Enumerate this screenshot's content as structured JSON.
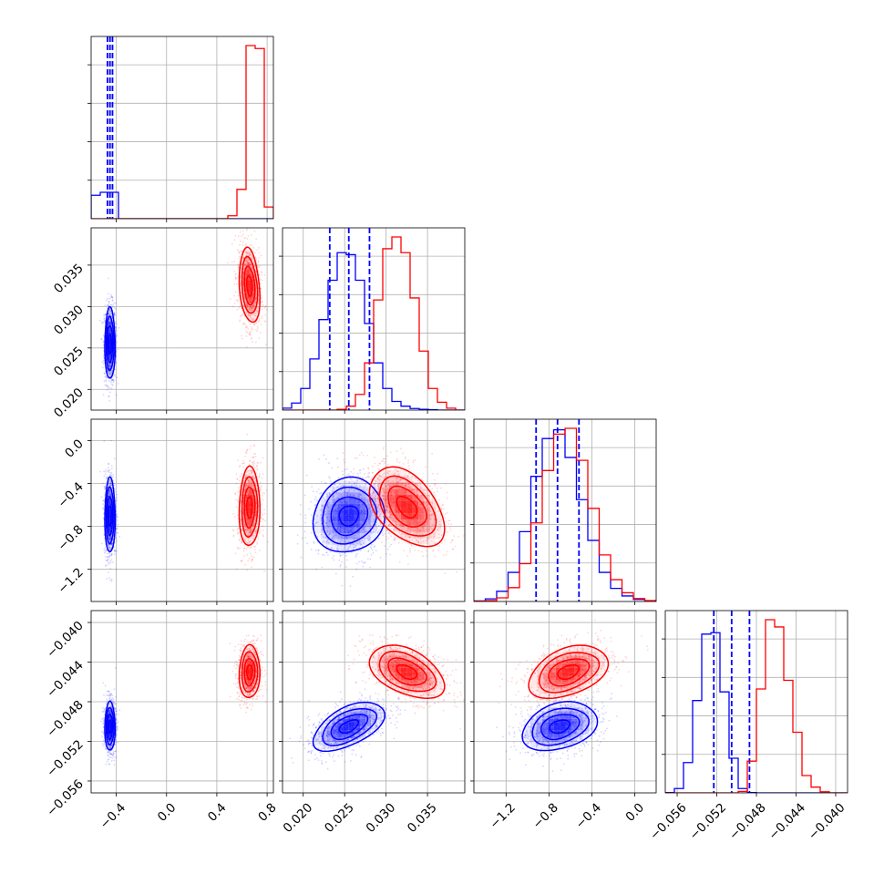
{
  "chart_data": {
    "type": "corner",
    "colors": {
      "series_a": "#0000ff",
      "series_b": "#ff0000"
    },
    "grid": true,
    "title": "",
    "parameters": [
      {
        "index": 0,
        "range": [
          -0.6,
          0.85
        ],
        "ticks": [
          "-0.4",
          "0.0",
          "0.4",
          "0.8"
        ],
        "tick_values": [
          -0.4,
          0.0,
          0.4,
          0.8
        ]
      },
      {
        "index": 1,
        "range": [
          0.0175,
          0.0395
        ],
        "ticks": [
          "0.020",
          "0.025",
          "0.030",
          "0.035"
        ],
        "tick_values": [
          0.02,
          0.025,
          0.03,
          0.035
        ]
      },
      {
        "index": 2,
        "range": [
          -1.5,
          0.2
        ],
        "ticks": [
          "-1.2",
          "-0.8",
          "-0.4",
          "0.0"
        ],
        "tick_values": [
          -1.2,
          -0.8,
          -0.4,
          0.0
        ]
      },
      {
        "index": 3,
        "range": [
          -0.0572,
          -0.0388
        ],
        "ticks": [
          "-0.056",
          "-0.052",
          "-0.048",
          "-0.044",
          "-0.040"
        ],
        "tick_values": [
          -0.056,
          -0.052,
          -0.048,
          -0.044,
          -0.04
        ]
      }
    ],
    "series": [
      {
        "color": "#0000ff",
        "mean": [
          -0.45,
          0.0255,
          -0.7,
          -0.0505
        ],
        "std": [
          0.02,
          0.0021,
          0.17,
          0.0012
        ],
        "corr": [
          [
            1,
            0,
            0,
            0
          ],
          [
            0,
            1,
            0.1,
            0.55
          ],
          [
            0,
            0.1,
            1,
            0.3
          ],
          [
            0,
            0.55,
            0.3,
            1
          ]
        ],
        "quantile_lines": [
          [
            -0.47,
            -0.45,
            -0.43
          ],
          [
            0.0232,
            0.0255,
            0.028
          ],
          [
            -0.92,
            -0.72,
            -0.52
          ],
          [
            -0.0523,
            -0.0505,
            -0.0487
          ]
        ],
        "histograms": [
          [
            8,
            9,
            9,
            0,
            0,
            0,
            0,
            0,
            0,
            0,
            0,
            0,
            0,
            0,
            0,
            0,
            0,
            0,
            0,
            0
          ],
          [
            5,
            18,
            55,
            130,
            230,
            330,
            400,
            395,
            330,
            220,
            120,
            55,
            22,
            10,
            4,
            2,
            1,
            0,
            0,
            0
          ],
          [
            4,
            18,
            70,
            200,
            480,
            860,
            1120,
            1180,
            990,
            700,
            420,
            200,
            90,
            38,
            14,
            5
          ],
          [
            2,
            30,
            210,
            640,
            1100,
            1110,
            700,
            240,
            30,
            2,
            0,
            0,
            0,
            0,
            0,
            0,
            0,
            0,
            0,
            0
          ]
        ]
      },
      {
        "color": "#ff0000",
        "mean": [
          0.66,
          0.0325,
          -0.62,
          -0.045
        ],
        "std": [
          0.04,
          0.0022,
          0.18,
          0.0013
        ],
        "corr": [
          [
            1,
            -0.25,
            0.05,
            0.05
          ],
          [
            -0.25,
            1,
            -0.45,
            -0.45
          ],
          [
            0.05,
            -0.45,
            1,
            0.4
          ],
          [
            0.05,
            -0.45,
            0.4,
            1
          ]
        ],
        "quantile_lines": [],
        "histograms": [
          [
            0,
            0,
            0,
            0,
            0,
            0,
            0,
            0,
            0,
            0,
            0,
            0,
            0,
            0,
            0,
            1,
            10,
            59,
            58,
            4
          ],
          [
            0,
            0,
            0,
            0,
            0,
            0,
            2,
            10,
            40,
            120,
            280,
            410,
            440,
            400,
            285,
            150,
            55,
            20,
            5,
            0
          ],
          [
            2,
            6,
            25,
            95,
            260,
            540,
            900,
            1150,
            1190,
            970,
            640,
            320,
            150,
            60,
            20,
            6
          ],
          [
            0,
            0,
            0,
            0,
            0,
            0,
            0,
            0,
            10,
            220,
            720,
            1200,
            1150,
            780,
            420,
            120,
            40,
            8,
            0,
            0
          ]
        ]
      }
    ]
  }
}
